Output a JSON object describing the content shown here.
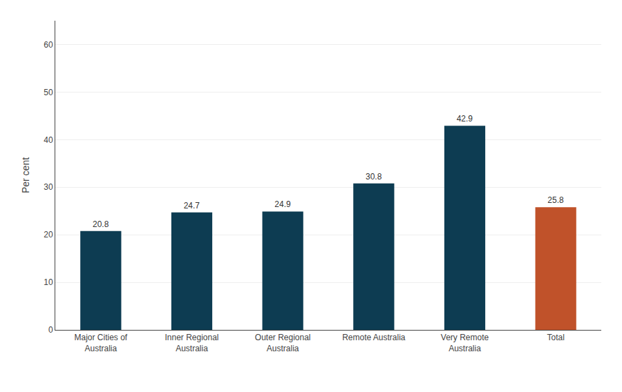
{
  "chart_data": {
    "type": "bar",
    "categories": [
      "Major Cities of\nAustralia",
      "Inner Regional\nAustralia",
      "Outer Regional\nAustralia",
      "Remote Australia",
      "Very Remote\nAustralia",
      "Total"
    ],
    "values": [
      20.8,
      24.7,
      24.9,
      30.8,
      42.9,
      25.8
    ],
    "colors": [
      "#0d3c52",
      "#0d3c52",
      "#0d3c52",
      "#0d3c52",
      "#0d3c52",
      "#c0522a"
    ],
    "ylabel": "Per cent",
    "ylim": [
      0,
      65
    ],
    "yticks": [
      0,
      10,
      20,
      30,
      40,
      50,
      60
    ],
    "grid": true,
    "data_labels": true
  }
}
